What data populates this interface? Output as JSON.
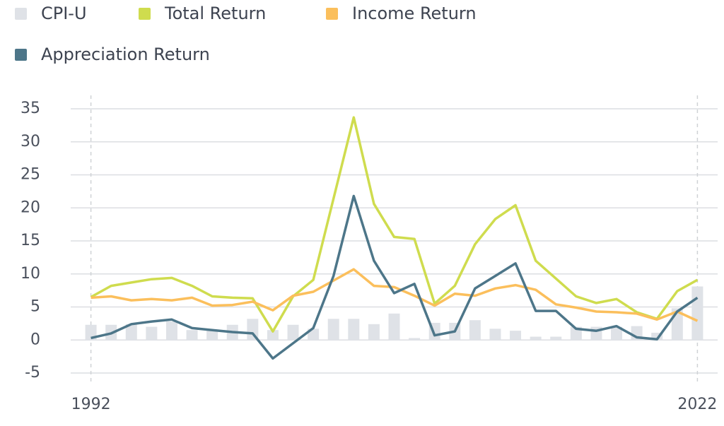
{
  "chart_data": {
    "type": "line",
    "x": [
      1992,
      1993,
      1994,
      1995,
      1996,
      1997,
      1998,
      1999,
      2000,
      2001,
      2002,
      2003,
      2004,
      2005,
      2006,
      2007,
      2008,
      2009,
      2010,
      2011,
      2012,
      2013,
      2014,
      2015,
      2016,
      2017,
      2018,
      2019,
      2020,
      2021,
      2022
    ],
    "xlim": [
      1991,
      2023
    ],
    "xticks": [
      1992,
      2022
    ],
    "ylim": [
      -5,
      35
    ],
    "yticks": [
      -5,
      0,
      5,
      10,
      15,
      20,
      25,
      30,
      35
    ],
    "grid": true,
    "series": [
      {
        "name": "CPI-U",
        "type": "bar",
        "color": "#dfe2e7",
        "values": [
          2.3,
          2.3,
          2.4,
          2.0,
          2.8,
          1.5,
          1.5,
          2.3,
          3.2,
          1.5,
          2.3,
          1.7,
          3.2,
          3.2,
          2.4,
          4.0,
          0.3,
          2.6,
          2.6,
          3.0,
          1.7,
          1.4,
          0.5,
          0.5,
          2.0,
          2.0,
          2.0,
          2.1,
          1.1,
          4.8,
          8.1
        ]
      },
      {
        "name": "Total Return",
        "type": "line",
        "color": "#cfdc4e",
        "values": [
          6.5,
          8.2,
          8.7,
          9.2,
          9.4,
          8.2,
          6.6,
          6.4,
          6.3,
          1.3,
          6.6,
          9.1,
          21.4,
          33.7,
          20.6,
          15.6,
          15.3,
          5.5,
          8.2,
          14.5,
          18.3,
          20.4,
          12.0,
          9.3,
          6.6,
          5.6,
          6.2,
          4.2,
          3.2,
          7.4,
          9.1
        ]
      },
      {
        "name": "Income Return",
        "type": "line",
        "color": "#fbbf5c",
        "values": [
          6.4,
          6.6,
          6.0,
          6.2,
          6.0,
          6.4,
          5.2,
          5.3,
          5.8,
          4.5,
          6.7,
          7.3,
          9.0,
          10.7,
          8.2,
          8.0,
          6.7,
          5.2,
          7.0,
          6.7,
          7.8,
          8.3,
          7.6,
          5.4,
          4.9,
          4.3,
          4.2,
          4.0,
          3.1,
          4.3,
          2.9
        ]
      },
      {
        "name": "Appreciation Return",
        "type": "line",
        "color": "#4d7689",
        "values": [
          0.3,
          1.0,
          2.4,
          2.8,
          3.1,
          1.8,
          1.5,
          1.2,
          1.0,
          -2.8,
          -0.5,
          1.8,
          9.7,
          21.8,
          12.0,
          7.1,
          8.5,
          0.7,
          1.3,
          7.8,
          9.7,
          11.6,
          4.4,
          4.4,
          1.7,
          1.4,
          2.1,
          0.4,
          0.1,
          4.3,
          6.4
        ]
      }
    ]
  }
}
